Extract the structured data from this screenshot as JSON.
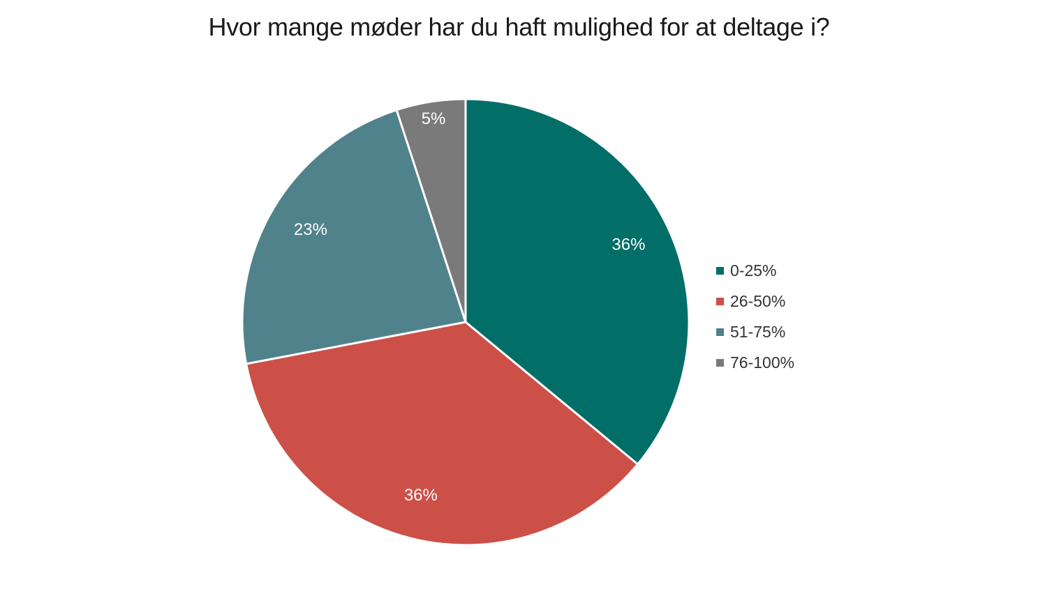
{
  "chart_data": {
    "type": "pie",
    "title": "Hvor mange møder har du haft mulighed for at deltage i?",
    "legend_position": "right",
    "slices": [
      {
        "label": "0-25%",
        "value": 36,
        "display": "36%",
        "color": "#016E67"
      },
      {
        "label": "26-50%",
        "value": 36,
        "display": "36%",
        "color": "#CC5048"
      },
      {
        "label": "51-75%",
        "value": 23,
        "display": "23%",
        "color": "#50828B"
      },
      {
        "label": "76-100%",
        "value": 5,
        "display": "5%",
        "color": "#7A7A7A"
      }
    ]
  }
}
